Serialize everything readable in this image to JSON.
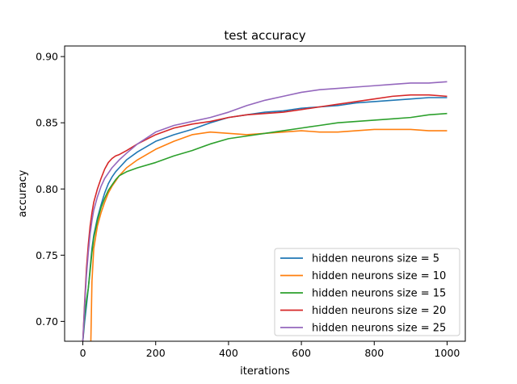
{
  "chart_data": {
    "type": "line",
    "title": "test accuracy",
    "xlabel": "iterations",
    "ylabel": "accuracy",
    "xlim": [
      -50,
      1050
    ],
    "ylim": [
      0.685,
      0.908
    ],
    "xticks": [
      0,
      200,
      400,
      600,
      800,
      1000
    ],
    "xtick_labels": [
      "0",
      "200",
      "400",
      "600",
      "800",
      "1000"
    ],
    "yticks": [
      0.7,
      0.75,
      0.8,
      0.85,
      0.9
    ],
    "ytick_labels": [
      "0.70",
      "0.75",
      "0.80",
      "0.85",
      "0.90"
    ],
    "grid": false,
    "legend_position": "lower-right",
    "series": [
      {
        "name": "hidden neurons size = 5",
        "color": "#1f77b4",
        "x": [
          0,
          5,
          10,
          15,
          20,
          25,
          30,
          40,
          50,
          60,
          70,
          80,
          90,
          100,
          120,
          150,
          200,
          250,
          300,
          350,
          400,
          450,
          500,
          550,
          600,
          650,
          700,
          750,
          800,
          850,
          900,
          950,
          1000
        ],
        "y": [
          0.685,
          0.7,
          0.712,
          0.725,
          0.74,
          0.755,
          0.765,
          0.778,
          0.788,
          0.797,
          0.804,
          0.809,
          0.813,
          0.816,
          0.822,
          0.828,
          0.836,
          0.841,
          0.845,
          0.85,
          0.854,
          0.856,
          0.858,
          0.859,
          0.861,
          0.862,
          0.863,
          0.865,
          0.866,
          0.867,
          0.868,
          0.869,
          0.869
        ]
      },
      {
        "name": "hidden neurons size = 10",
        "color": "#ff7f0e",
        "x": [
          22,
          25,
          30,
          40,
          50,
          60,
          70,
          80,
          90,
          100,
          120,
          150,
          200,
          250,
          300,
          350,
          400,
          450,
          500,
          550,
          600,
          650,
          700,
          750,
          800,
          850,
          900,
          950,
          1000
        ],
        "y": [
          0.685,
          0.73,
          0.755,
          0.772,
          0.782,
          0.79,
          0.797,
          0.802,
          0.806,
          0.81,
          0.816,
          0.822,
          0.83,
          0.836,
          0.841,
          0.843,
          0.842,
          0.841,
          0.842,
          0.843,
          0.844,
          0.843,
          0.843,
          0.844,
          0.845,
          0.845,
          0.845,
          0.844,
          0.844
        ]
      },
      {
        "name": "hidden neurons size = 15",
        "color": "#2ca02c",
        "x": [
          0,
          5,
          10,
          15,
          20,
          25,
          30,
          40,
          50,
          60,
          70,
          80,
          90,
          100,
          120,
          150,
          200,
          250,
          300,
          350,
          400,
          450,
          500,
          550,
          600,
          650,
          700,
          750,
          800,
          850,
          900,
          950,
          1000
        ],
        "y": [
          0.685,
          0.705,
          0.716,
          0.725,
          0.738,
          0.752,
          0.763,
          0.776,
          0.786,
          0.793,
          0.799,
          0.803,
          0.807,
          0.81,
          0.813,
          0.816,
          0.82,
          0.825,
          0.829,
          0.834,
          0.838,
          0.84,
          0.842,
          0.844,
          0.846,
          0.848,
          0.85,
          0.851,
          0.852,
          0.853,
          0.854,
          0.856,
          0.857
        ]
      },
      {
        "name": "hidden neurons size = 20",
        "color": "#d62728",
        "x": [
          0,
          5,
          10,
          15,
          20,
          25,
          30,
          40,
          50,
          60,
          70,
          80,
          90,
          100,
          120,
          150,
          200,
          250,
          300,
          350,
          400,
          450,
          500,
          550,
          600,
          650,
          700,
          750,
          800,
          850,
          900,
          950,
          1000
        ],
        "y": [
          0.685,
          0.715,
          0.74,
          0.758,
          0.772,
          0.782,
          0.79,
          0.8,
          0.808,
          0.815,
          0.82,
          0.823,
          0.825,
          0.826,
          0.829,
          0.834,
          0.841,
          0.846,
          0.849,
          0.851,
          0.854,
          0.856,
          0.857,
          0.858,
          0.86,
          0.862,
          0.864,
          0.866,
          0.868,
          0.87,
          0.871,
          0.871,
          0.87
        ]
      },
      {
        "name": "hidden neurons size = 25",
        "color": "#9467bd",
        "x": [
          0,
          5,
          10,
          15,
          20,
          25,
          30,
          40,
          50,
          60,
          70,
          80,
          90,
          100,
          120,
          150,
          200,
          250,
          300,
          350,
          400,
          450,
          500,
          550,
          600,
          650,
          700,
          750,
          800,
          850,
          900,
          950,
          1000
        ],
        "y": [
          0.685,
          0.712,
          0.735,
          0.752,
          0.766,
          0.776,
          0.784,
          0.794,
          0.802,
          0.808,
          0.812,
          0.816,
          0.819,
          0.822,
          0.827,
          0.834,
          0.843,
          0.848,
          0.851,
          0.854,
          0.858,
          0.863,
          0.867,
          0.87,
          0.873,
          0.875,
          0.876,
          0.877,
          0.878,
          0.879,
          0.88,
          0.88,
          0.881
        ]
      }
    ]
  }
}
